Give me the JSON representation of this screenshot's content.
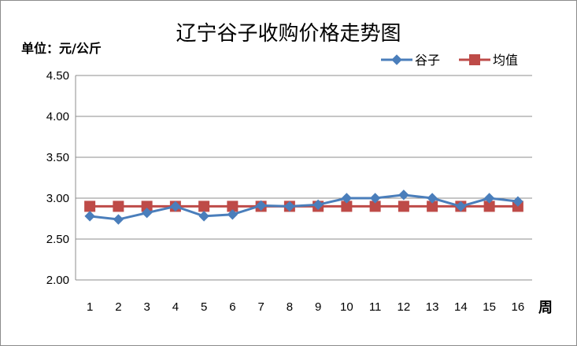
{
  "chart_data": {
    "type": "line",
    "title": "辽宁谷子收购价格走势图",
    "ylabel": "单位：元/公斤",
    "xlabel": "周",
    "x": [
      "1",
      "2",
      "3",
      "4",
      "5",
      "6",
      "7",
      "8",
      "9",
      "10",
      "11",
      "12",
      "13",
      "14",
      "15",
      "16"
    ],
    "ylim": [
      2.0,
      4.5
    ],
    "yticks": [
      "4.50",
      "4.00",
      "3.50",
      "3.00",
      "2.50",
      "2.00"
    ],
    "grid": true,
    "legend_position": "top-right",
    "series": [
      {
        "name": "谷子",
        "color": "#4a7ebb",
        "marker": "diamond",
        "values": [
          2.78,
          2.74,
          2.82,
          2.9,
          2.78,
          2.8,
          2.91,
          2.9,
          2.92,
          3.0,
          3.0,
          3.04,
          3.0,
          2.9,
          3.0,
          2.96
        ]
      },
      {
        "name": "均值",
        "color": "#be4b48",
        "marker": "square",
        "values": [
          2.9,
          2.9,
          2.9,
          2.9,
          2.9,
          2.9,
          2.9,
          2.9,
          2.9,
          2.9,
          2.9,
          2.9,
          2.9,
          2.9,
          2.9,
          2.9
        ]
      }
    ]
  }
}
